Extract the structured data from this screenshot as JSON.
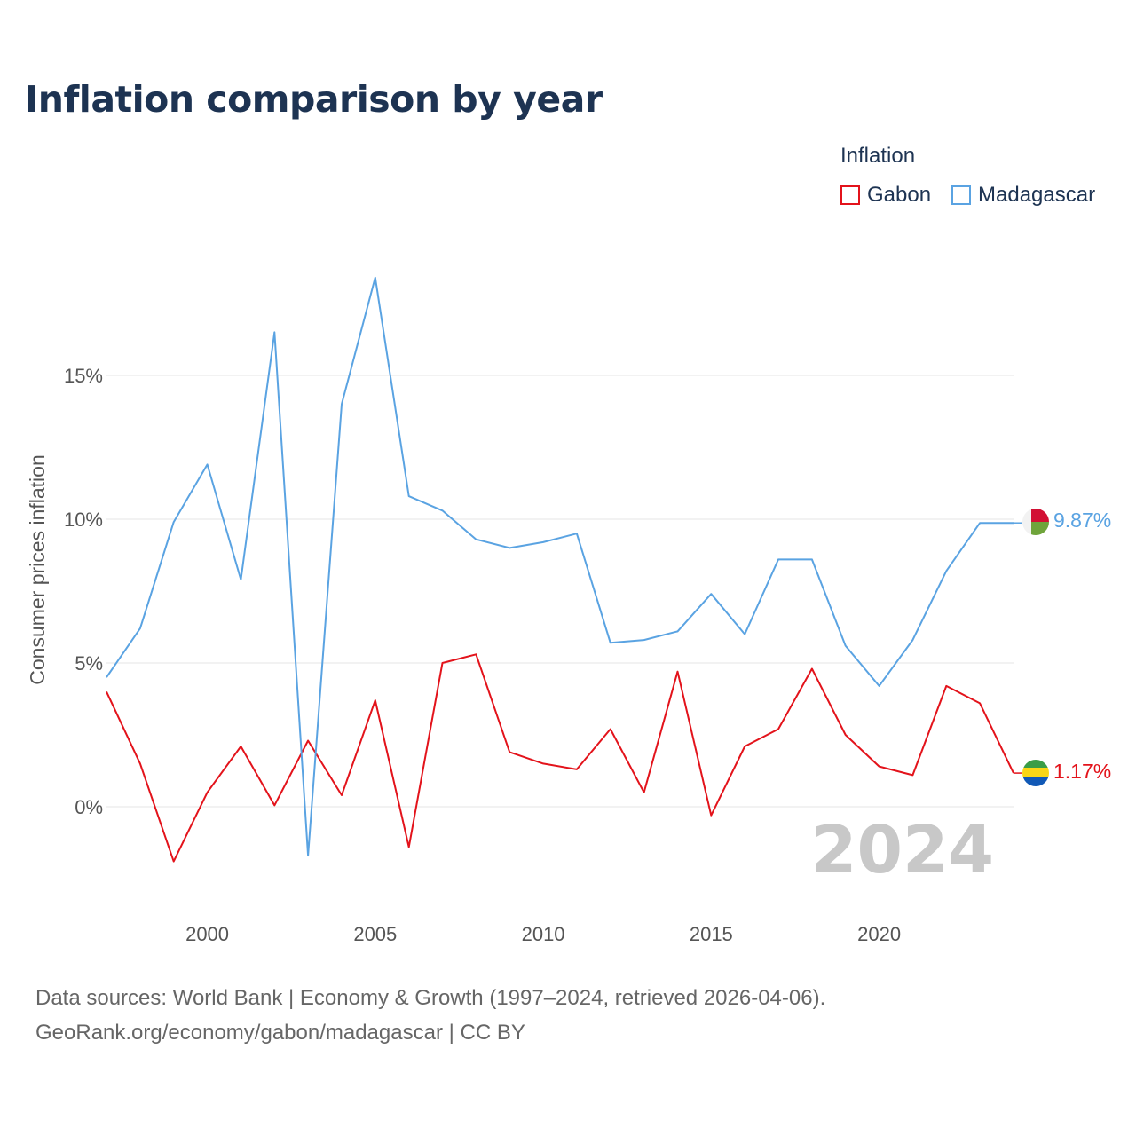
{
  "header": {
    "title": "Inflation comparison by year"
  },
  "legend": {
    "title": "Inflation",
    "items": [
      {
        "name": "Gabon",
        "color": "#e3131b"
      },
      {
        "name": "Madagascar",
        "color": "#5aa3e2"
      }
    ]
  },
  "footer": {
    "line1": "Data sources: World Bank | Economy & Growth (1997–2024, retrieved 2026-04-06).",
    "line2": "GeoRank.org/economy/gabon/madagascar | CC BY"
  },
  "chart_data": {
    "type": "line",
    "title": "Inflation comparison by year",
    "xlabel": "",
    "ylabel": "Consumer prices inflation",
    "x": [
      1997,
      1998,
      1999,
      2000,
      2001,
      2002,
      2003,
      2004,
      2005,
      2006,
      2007,
      2008,
      2009,
      2010,
      2011,
      2012,
      2013,
      2014,
      2015,
      2016,
      2017,
      2018,
      2019,
      2020,
      2021,
      2022,
      2023,
      2024
    ],
    "xlim": [
      1997,
      2024
    ],
    "ylim": [
      -3,
      20
    ],
    "x_ticks": [
      {
        "value": 2000,
        "label": "2000"
      },
      {
        "value": 2005,
        "label": "2005"
      },
      {
        "value": 2010,
        "label": "2010"
      },
      {
        "value": 2015,
        "label": "2015"
      },
      {
        "value": 2020,
        "label": "2020"
      }
    ],
    "y_ticks": [
      {
        "value": 0,
        "label": "0%"
      },
      {
        "value": 5,
        "label": "5%"
      },
      {
        "value": 10,
        "label": "10%"
      },
      {
        "value": 15,
        "label": "15%"
      }
    ],
    "grid": true,
    "year_watermark": "2024",
    "series": [
      {
        "name": "Gabon",
        "color": "#e3131b",
        "end_label": "1.17%",
        "flag": "gabon",
        "values": [
          4.0,
          1.5,
          -1.9,
          0.5,
          2.1,
          0.05,
          2.3,
          0.4,
          3.7,
          -1.4,
          5.0,
          5.3,
          1.9,
          1.5,
          1.3,
          2.7,
          0.5,
          4.7,
          -0.3,
          2.1,
          2.7,
          4.8,
          2.5,
          1.4,
          1.1,
          4.2,
          3.6,
          1.17
        ]
      },
      {
        "name": "Madagascar",
        "color": "#5aa3e2",
        "end_label": "9.87%",
        "flag": "madagascar",
        "values": [
          4.5,
          6.2,
          9.9,
          11.9,
          7.9,
          16.5,
          -1.7,
          14.0,
          18.4,
          10.8,
          10.3,
          9.3,
          9.0,
          9.2,
          9.5,
          5.7,
          5.8,
          6.1,
          7.4,
          6.0,
          8.6,
          8.6,
          5.6,
          4.2,
          5.8,
          8.2,
          9.87,
          9.87
        ]
      }
    ]
  }
}
